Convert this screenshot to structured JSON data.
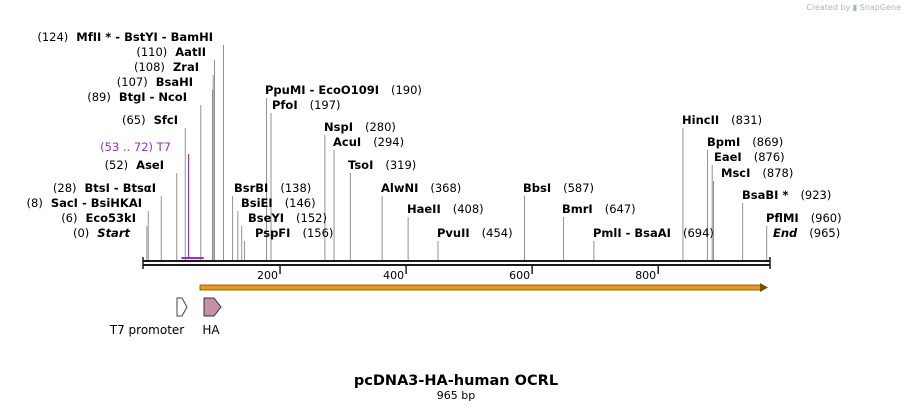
{
  "credit": {
    "prefix": "Created by",
    "brand": "SnapGene"
  },
  "map": {
    "length": 965,
    "title": "pcDNA3-HA-human OCRL",
    "subtitle": "965 bp",
    "ticks": [
      {
        "pos": 200,
        "label": "200"
      },
      {
        "pos": 400,
        "label": "400"
      },
      {
        "pos": 600,
        "label": "600"
      },
      {
        "pos": 800,
        "label": "800"
      }
    ],
    "colors": {
      "primer": "#9b2fc5",
      "orf": "#e89a1a",
      "ha": "#c790a8",
      "backbone": "#1a1a1a"
    }
  },
  "sites": [
    {
      "pos": 0,
      "text": "(0)",
      "name": "Start",
      "style": "start"
    },
    {
      "pos": 6,
      "text": "(6)",
      "name": "Eco53kI"
    },
    {
      "pos": 8,
      "text": "(8)",
      "name": "SacI  -  BsiHKAI"
    },
    {
      "pos": 28,
      "text": "(28)",
      "name": "BtsI  -  BtsαI"
    },
    {
      "pos": 52,
      "text": "(52)",
      "name": "AseI"
    },
    {
      "pos": 65,
      "text": "(65)",
      "name": "SfcI"
    },
    {
      "pos": 89,
      "text": "(89)",
      "name": "BtgI  -  NcoI"
    },
    {
      "pos": 107,
      "text": "(107)",
      "name": "BsaHI"
    },
    {
      "pos": 108,
      "text": "(108)",
      "name": "ZraI"
    },
    {
      "pos": 110,
      "text": "(110)",
      "name": "AatII"
    },
    {
      "pos": 124,
      "text": "(124)",
      "name": "MfII *  -  BstYI   -  BamHI"
    },
    {
      "pos": 138,
      "text": "(138)",
      "name": "BsrBI"
    },
    {
      "pos": 146,
      "text": "(146)",
      "name": "BsiEI"
    },
    {
      "pos": 152,
      "text": "(152)",
      "name": "BseYI"
    },
    {
      "pos": 156,
      "text": "(156)",
      "name": "PspFI"
    },
    {
      "pos": 190,
      "text": "(190)",
      "name": "PpuMI   -  EcoO109I"
    },
    {
      "pos": 197,
      "text": "(197)",
      "name": "PfoI"
    },
    {
      "pos": 280,
      "text": "(280)",
      "name": "NspI"
    },
    {
      "pos": 294,
      "text": "(294)",
      "name": "AcuI"
    },
    {
      "pos": 319,
      "text": "(319)",
      "name": "TsoI"
    },
    {
      "pos": 368,
      "text": "(368)",
      "name": "AlwNI"
    },
    {
      "pos": 408,
      "text": "(408)",
      "name": "HaeII"
    },
    {
      "pos": 454,
      "text": "(454)",
      "name": "PvuII"
    },
    {
      "pos": 587,
      "text": "(587)",
      "name": "BbsI"
    },
    {
      "pos": 647,
      "text": "(647)",
      "name": "BmrI"
    },
    {
      "pos": 694,
      "text": "(694)",
      "name": "PmlI  -  BsaAI"
    },
    {
      "pos": 831,
      "text": "(831)",
      "name": "HincII"
    },
    {
      "pos": 869,
      "text": "(869)",
      "name": "BpmI"
    },
    {
      "pos": 876,
      "text": "(876)",
      "name": "EaeI"
    },
    {
      "pos": 878,
      "text": "(878)",
      "name": "MscI"
    },
    {
      "pos": 923,
      "text": "(923)",
      "name": "BsaBI *"
    },
    {
      "pos": 960,
      "text": "(960)",
      "name": "PflMI"
    },
    {
      "pos": 965,
      "text": "(965)",
      "name": "End",
      "style": "end"
    }
  ],
  "primer": {
    "start": 53,
    "end": 72,
    "text": "(53 .. 72)",
    "name": "T7"
  },
  "features": [
    {
      "name": "T7 promoter",
      "start": 53,
      "end": 72,
      "type": "promoter"
    },
    {
      "name": "HA",
      "start": 95,
      "end": 124,
      "type": "tag"
    },
    {
      "name": "",
      "start": 89,
      "end": 965,
      "type": "orf"
    }
  ]
}
